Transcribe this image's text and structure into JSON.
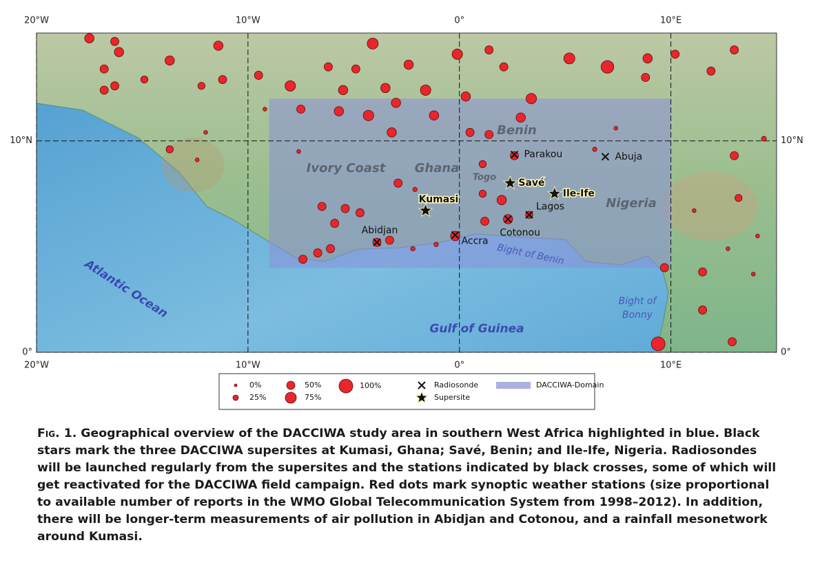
{
  "map": {
    "xlim": [
      -20,
      15
    ],
    "ylim": [
      0,
      15.1
    ],
    "xticks": [
      {
        "value": -20,
        "label": "20°W"
      },
      {
        "value": -10,
        "label": "10°W"
      },
      {
        "value": 0,
        "label": "0°"
      },
      {
        "value": 10,
        "label": "10°E"
      }
    ],
    "yticks": [
      {
        "value": 0,
        "label": "0°"
      },
      {
        "value": 10,
        "label": "10°N"
      }
    ],
    "grid": true,
    "domain": {
      "lon": [
        -9,
        10
      ],
      "lat": [
        4,
        12
      ],
      "color": "#8a8fd8"
    },
    "station_color": "#e8262b",
    "regions": [
      "Ivory Coast",
      "Ghana",
      "Togo",
      "Benin",
      "Nigeria"
    ],
    "waters": [
      "Atlantic Ocean",
      "Gulf of Guinea",
      "Bight of Benin",
      "Bight of",
      "Bonny"
    ],
    "stations": [
      {
        "lon": -17.5,
        "lat": 14.85,
        "pct": 60
      },
      {
        "lon": -16.3,
        "lat": 14.7,
        "pct": 50
      },
      {
        "lon": -16.1,
        "lat": 14.2,
        "pct": 60
      },
      {
        "lon": -16.8,
        "lat": 13.4,
        "pct": 50
      },
      {
        "lon": -16.3,
        "lat": 12.6,
        "pct": 50
      },
      {
        "lon": -16.8,
        "lat": 12.4,
        "pct": 50
      },
      {
        "lon": -13.7,
        "lat": 13.8,
        "pct": 60
      },
      {
        "lon": -11.4,
        "lat": 14.5,
        "pct": 60
      },
      {
        "lon": -14.9,
        "lat": 12.9,
        "pct": 40
      },
      {
        "lon": -12.2,
        "lat": 12.6,
        "pct": 40
      },
      {
        "lon": -11.2,
        "lat": 12.9,
        "pct": 50
      },
      {
        "lon": -9.5,
        "lat": 13.1,
        "pct": 50
      },
      {
        "lon": -4.1,
        "lat": 14.6,
        "pct": 75
      },
      {
        "lon": -6.2,
        "lat": 13.5,
        "pct": 50
      },
      {
        "lon": -4.9,
        "lat": 13.4,
        "pct": 50
      },
      {
        "lon": -2.4,
        "lat": 13.6,
        "pct": 60
      },
      {
        "lon": -0.1,
        "lat": 14.1,
        "pct": 70
      },
      {
        "lon": 1.4,
        "lat": 14.3,
        "pct": 50
      },
      {
        "lon": 2.1,
        "lat": 13.5,
        "pct": 50
      },
      {
        "lon": 5.2,
        "lat": 13.9,
        "pct": 75
      },
      {
        "lon": 7.0,
        "lat": 13.5,
        "pct": 90
      },
      {
        "lon": 8.9,
        "lat": 13.9,
        "pct": 60
      },
      {
        "lon": 8.8,
        "lat": 13.0,
        "pct": 50
      },
      {
        "lon": 10.2,
        "lat": 14.1,
        "pct": 50
      },
      {
        "lon": 11.9,
        "lat": 13.3,
        "pct": 50
      },
      {
        "lon": 13.0,
        "lat": 14.3,
        "pct": 50
      },
      {
        "lon": -8.0,
        "lat": 12.6,
        "pct": 70
      },
      {
        "lon": -5.5,
        "lat": 12.4,
        "pct": 60
      },
      {
        "lon": -3.5,
        "lat": 12.5,
        "pct": 60
      },
      {
        "lon": -1.6,
        "lat": 12.4,
        "pct": 70
      },
      {
        "lon": 0.3,
        "lat": 12.1,
        "pct": 60
      },
      {
        "lon": 3.4,
        "lat": 12.0,
        "pct": 70
      },
      {
        "lon": -7.5,
        "lat": 11.5,
        "pct": 50
      },
      {
        "lon": -5.7,
        "lat": 11.4,
        "pct": 60
      },
      {
        "lon": -4.3,
        "lat": 11.2,
        "pct": 70
      },
      {
        "lon": -3.0,
        "lat": 11.8,
        "pct": 60
      },
      {
        "lon": -1.2,
        "lat": 11.2,
        "pct": 60
      },
      {
        "lon": 2.9,
        "lat": 11.1,
        "pct": 60
      },
      {
        "lon": -3.2,
        "lat": 10.4,
        "pct": 60
      },
      {
        "lon": 0.5,
        "lat": 10.4,
        "pct": 50
      },
      {
        "lon": 1.4,
        "lat": 10.3,
        "pct": 50
      },
      {
        "lon": -13.7,
        "lat": 9.6,
        "pct": 40
      },
      {
        "lon": -2.9,
        "lat": 8.0,
        "pct": 50
      },
      {
        "lon": 1.1,
        "lat": 8.9,
        "pct": 40
      },
      {
        "lon": 2.0,
        "lat": 7.2,
        "pct": 60
      },
      {
        "lon": 1.1,
        "lat": 7.5,
        "pct": 40
      },
      {
        "lon": -6.5,
        "lat": 6.9,
        "pct": 50
      },
      {
        "lon": -5.4,
        "lat": 6.8,
        "pct": 50
      },
      {
        "lon": -4.7,
        "lat": 6.6,
        "pct": 50
      },
      {
        "lon": -5.9,
        "lat": 6.1,
        "pct": 50
      },
      {
        "lon": -7.4,
        "lat": 4.4,
        "pct": 50
      },
      {
        "lon": -6.7,
        "lat": 4.7,
        "pct": 50
      },
      {
        "lon": -6.1,
        "lat": 4.9,
        "pct": 50
      },
      {
        "lon": -3.3,
        "lat": 5.3,
        "pct": 50
      },
      {
        "lon": -3.9,
        "lat": 5.2,
        "pct": 50
      },
      {
        "lon": -0.2,
        "lat": 5.5,
        "pct": 60
      },
      {
        "lon": 1.2,
        "lat": 6.2,
        "pct": 50
      },
      {
        "lon": 2.3,
        "lat": 6.3,
        "pct": 60
      },
      {
        "lon": 3.3,
        "lat": 6.5,
        "pct": 40
      },
      {
        "lon": 2.6,
        "lat": 9.3,
        "pct": 50
      },
      {
        "lon": 9.7,
        "lat": 4.0,
        "pct": 50
      },
      {
        "lon": 9.4,
        "lat": 0.4,
        "pct": 100
      },
      {
        "lon": 11.5,
        "lat": 3.8,
        "pct": 50
      },
      {
        "lon": 11.5,
        "lat": 2.0,
        "pct": 50
      },
      {
        "lon": 12.9,
        "lat": 0.5,
        "pct": 50
      },
      {
        "lon": 13.2,
        "lat": 7.3,
        "pct": 40
      },
      {
        "lon": 13.0,
        "lat": 9.3,
        "pct": 50
      },
      {
        "lon": 14.4,
        "lat": 10.1,
        "pct": 20
      },
      {
        "lon": -9.2,
        "lat": 11.5,
        "pct": 10
      },
      {
        "lon": -7.6,
        "lat": 9.5,
        "pct": 10
      },
      {
        "lon": -2.1,
        "lat": 7.7,
        "pct": 15
      },
      {
        "lon": -2.2,
        "lat": 4.9,
        "pct": 15
      },
      {
        "lon": -1.1,
        "lat": 5.1,
        "pct": 15
      },
      {
        "lon": 6.4,
        "lat": 9.6,
        "pct": 15
      },
      {
        "lon": 7.4,
        "lat": 10.6,
        "pct": 10
      },
      {
        "lon": -12.4,
        "lat": 9.1,
        "pct": 10
      },
      {
        "lon": -12.0,
        "lat": 10.4,
        "pct": 10
      },
      {
        "lon": 11.1,
        "lat": 6.7,
        "pct": 10
      },
      {
        "lon": 14.1,
        "lat": 5.5,
        "pct": 10
      },
      {
        "lon": 13.9,
        "lat": 3.7,
        "pct": 10
      },
      {
        "lon": 12.7,
        "lat": 4.9,
        "pct": 10
      }
    ],
    "sites": [
      {
        "name": "Parakou",
        "lon": 2.6,
        "lat": 9.35,
        "marker": "Radiosonde"
      },
      {
        "name": "Abuja",
        "lon": 6.9,
        "lat": 9.25,
        "marker": "Radiosonde"
      },
      {
        "name": "Savé",
        "lon": 2.4,
        "lat": 8.0,
        "marker": "Supersite"
      },
      {
        "name": "Ile-Ife",
        "lon": 4.5,
        "lat": 7.5,
        "marker": "Supersite"
      },
      {
        "name": "Kumasi",
        "lon": -1.6,
        "lat": 6.7,
        "marker": "Supersite"
      },
      {
        "name": "Lagos",
        "lon": 3.3,
        "lat": 6.5,
        "marker": "Radiosonde"
      },
      {
        "name": "Cotonou",
        "lon": 2.3,
        "lat": 6.3,
        "marker": "Radiosonde"
      },
      {
        "name": "Abidjan",
        "lon": -3.9,
        "lat": 5.2,
        "marker": "Radiosonde"
      },
      {
        "name": "Accra",
        "lon": -0.2,
        "lat": 5.55,
        "marker": "Radiosonde"
      }
    ]
  },
  "legend": {
    "sizes": [
      {
        "value": 0,
        "label": "0%"
      },
      {
        "value": 25,
        "label": "25%"
      },
      {
        "value": 50,
        "label": "50%"
      },
      {
        "value": 75,
        "label": "75%"
      },
      {
        "value": 100,
        "label": "100%"
      }
    ],
    "symbols": [
      "Radiosonde",
      "Supersite",
      "DACCIWA-Domain"
    ]
  },
  "caption": {
    "label": "Fig. 1.",
    "text": "Geographical overview of the DACCIWA study area in southern West Africa highlighted in blue. Black stars mark the three DACCIWA supersites at Kumasi, Ghana; Savé, Benin; and Ile-Ife, Nigeria. Radiosondes will be launched regularly from the supersites and the stations indicated by black crosses, some of which will get reactivated for the DACCIWA field campaign. Red dots mark synoptic weather stations (size proportional to available number of reports in the WMO Global Telecommunication System from 1998–2012). In addition, there will be longer-term measurements of air pollution in Abidjan and Cotonou, and a rainfall mesonetwork around Kumasi."
  }
}
